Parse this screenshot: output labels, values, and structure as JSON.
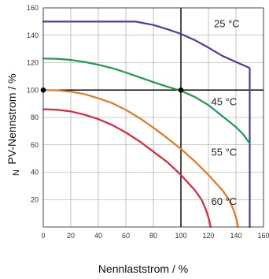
{
  "chart_data": {
    "type": "line",
    "xlabel": "Nennlaststrom / %",
    "ylabel": "PV-Nennstrom / %",
    "ylabel_prefix": "N",
    "xlim": [
      0,
      160
    ],
    "ylim": [
      0,
      160
    ],
    "xticks": [
      0,
      20,
      40,
      60,
      80,
      100,
      120,
      140,
      160
    ],
    "yticks": [
      20,
      40,
      60,
      80,
      100,
      120,
      140,
      160
    ],
    "grid": true,
    "series": [
      {
        "name": "25 °C",
        "color": "#4a3f9a",
        "points": [
          [
            0,
            150
          ],
          [
            20,
            150
          ],
          [
            40,
            150
          ],
          [
            60,
            150
          ],
          [
            67,
            150
          ],
          [
            80,
            147.5
          ],
          [
            90,
            144.5
          ],
          [
            100,
            141
          ],
          [
            110,
            136.5
          ],
          [
            120,
            131
          ],
          [
            130,
            125
          ],
          [
            140,
            120.5
          ],
          [
            148,
            117
          ],
          [
            150,
            116
          ],
          [
            150,
            0
          ]
        ]
      },
      {
        "name": "45 °C",
        "color": "#1f9a4e",
        "points": [
          [
            0,
            123
          ],
          [
            10,
            122.8
          ],
          [
            20,
            122
          ],
          [
            30,
            120.5
          ],
          [
            40,
            118.5
          ],
          [
            50,
            116
          ],
          [
            60,
            112.8
          ],
          [
            70,
            109.3
          ],
          [
            80,
            105.8
          ],
          [
            90,
            102.5
          ],
          [
            100,
            99.5
          ],
          [
            110,
            95
          ],
          [
            120,
            89
          ],
          [
            130,
            81
          ],
          [
            140,
            73
          ],
          [
            145,
            68
          ],
          [
            150,
            61
          ]
        ]
      },
      {
        "name": "55 °C",
        "color": "#e87722",
        "points": [
          [
            0,
            100
          ],
          [
            10,
            99.8
          ],
          [
            20,
            98.8
          ],
          [
            30,
            97
          ],
          [
            40,
            94
          ],
          [
            50,
            90.5
          ],
          [
            60,
            85.5
          ],
          [
            70,
            79.5
          ],
          [
            80,
            72.5
          ],
          [
            90,
            65
          ],
          [
            100,
            57
          ],
          [
            110,
            48
          ],
          [
            120,
            38
          ],
          [
            130,
            27
          ],
          [
            135,
            20
          ],
          [
            138,
            13
          ],
          [
            140,
            7
          ],
          [
            141,
            3
          ],
          [
            141.5,
            0
          ]
        ]
      },
      {
        "name": "60 °C",
        "color": "#d42a3a",
        "points": [
          [
            0,
            86
          ],
          [
            10,
            85.6
          ],
          [
            20,
            84.4
          ],
          [
            30,
            82
          ],
          [
            40,
            78.8
          ],
          [
            50,
            74.5
          ],
          [
            60,
            69
          ],
          [
            70,
            62.5
          ],
          [
            80,
            55
          ],
          [
            90,
            47.5
          ],
          [
            100,
            38
          ],
          [
            110,
            27
          ],
          [
            115,
            20
          ],
          [
            118,
            13
          ],
          [
            120,
            7
          ],
          [
            121,
            3
          ],
          [
            121.5,
            0
          ]
        ]
      }
    ],
    "reference_lines": {
      "x": 100,
      "y": 100,
      "color": "#000000"
    },
    "markers": [
      [
        0,
        100
      ],
      [
        100,
        100
      ]
    ],
    "annotations": [
      {
        "text": "25 °C",
        "x": 124,
        "y": 146
      },
      {
        "text": "45 °C",
        "x": 122,
        "y": 89
      },
      {
        "text": "55 °C",
        "x": 122,
        "y": 52
      },
      {
        "text": "60 °C",
        "x": 122,
        "y": 16
      }
    ]
  }
}
